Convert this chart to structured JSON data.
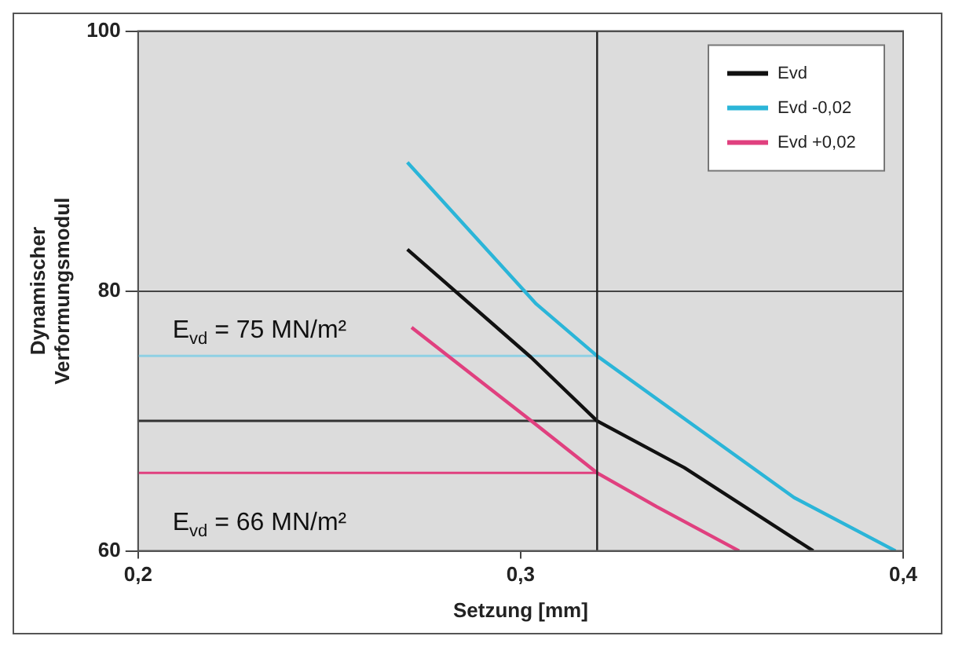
{
  "chart_data": {
    "type": "line",
    "xlabel": "Setzung [mm]",
    "ylabel": "Dynamischer\nVerformungsmodul",
    "xlim": [
      0.2,
      0.4
    ],
    "xticks": [
      {
        "value": 0.2,
        "label": "0,2"
      },
      {
        "value": 0.3,
        "label": "0,3"
      },
      {
        "value": 0.4,
        "label": "0,4"
      }
    ],
    "ylim": [
      60,
      100
    ],
    "yticks": [
      60,
      80,
      100
    ],
    "grid": "y",
    "legend": "top right",
    "line_style": "solid",
    "marker": "none",
    "series": [
      {
        "name": "Evd",
        "color": "#111111",
        "x": [
          0.2704,
          0.3027,
          0.32,
          0.3428,
          0.3765
        ],
        "values": [
          83.2,
          74.9,
          70,
          66.4,
          60
        ]
      },
      {
        "name": "Evd -0,02",
        "color": "#2bb5d8",
        "x": [
          0.2704,
          0.3041,
          0.32,
          0.3715,
          0.398
        ],
        "values": [
          89.9,
          79,
          75,
          64.1,
          60
        ]
      },
      {
        "name": "Evd +0,02",
        "color": "#e0407f",
        "x": [
          0.2715,
          0.3041,
          0.32,
          0.3356,
          0.3571
        ],
        "values": [
          77.2,
          69.7,
          66,
          63.4,
          60
        ]
      },
      {
        "color": "#8fd0e4",
        "x": [
          0.2,
          0.32
        ],
        "values": [
          75,
          75
        ]
      },
      {
        "color": "#333333",
        "x": [
          0.2,
          0.32
        ],
        "values": [
          70,
          70
        ]
      },
      {
        "color": "#e0407f",
        "x": [
          0.2,
          0.32
        ],
        "values": [
          66,
          66
        ]
      }
    ],
    "ref_lines": [
      {
        "axis": "x",
        "value": 0.32,
        "color": "#222222"
      }
    ],
    "annotations": [
      "E$_{vd}$ = 75 MN/m²",
      "E$_{vd}$ = 66 MN/m²"
    ]
  }
}
